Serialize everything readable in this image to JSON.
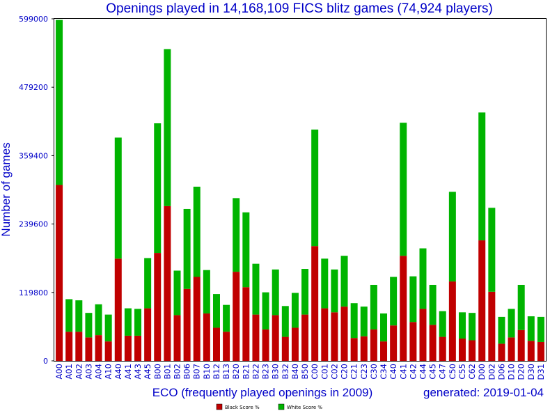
{
  "chart_data": {
    "type": "bar",
    "stacked": true,
    "title": "Openings played in 14,168,109 FICS blitz games (74,924 players)",
    "xlabel": "ECO (frequently played openings in 2009)",
    "ylabel": "Number of games",
    "generated": "generated: 2019-01-04",
    "ylim": [
      0,
      599000
    ],
    "yticks": [
      0,
      119800,
      239600,
      359400,
      479200,
      599000
    ],
    "ytick_labels": [
      "0",
      "119800",
      "239600",
      "359400",
      "479200",
      "599000"
    ],
    "grid": false,
    "legend_position": "bottom-center",
    "categories": [
      "A00",
      "A01",
      "A02",
      "A03",
      "A04",
      "A10",
      "A40",
      "A41",
      "A43",
      "A45",
      "B00",
      "B01",
      "B02",
      "B06",
      "B07",
      "B10",
      "B12",
      "B13",
      "B20",
      "B21",
      "B22",
      "B23",
      "B30",
      "B32",
      "B40",
      "B50",
      "C00",
      "C01",
      "C02",
      "C20",
      "C21",
      "C23",
      "C30",
      "C34",
      "C40",
      "C41",
      "C42",
      "C44",
      "C45",
      "C47",
      "C50",
      "C55",
      "C62",
      "D00",
      "D02",
      "D06",
      "D10",
      "D20",
      "D30",
      "D31"
    ],
    "series": [
      {
        "name": "Black Score %",
        "color": "#c00000",
        "values": [
          308000,
          51000,
          51000,
          41000,
          45000,
          34000,
          179000,
          44000,
          44000,
          92000,
          189000,
          271000,
          80000,
          126000,
          147000,
          83000,
          58000,
          51000,
          156000,
          129000,
          81000,
          55000,
          80000,
          42000,
          58000,
          81000,
          201000,
          92000,
          85000,
          95000,
          40000,
          43000,
          55000,
          34000,
          62000,
          184000,
          68000,
          91000,
          63000,
          42000,
          139000,
          39000,
          36000,
          211000,
          121000,
          30000,
          41000,
          54000,
          35000,
          33000
        ]
      },
      {
        "name": "White Score %",
        "color": "#00b400",
        "values": [
          289000,
          57000,
          55000,
          43000,
          54000,
          47000,
          212000,
          48000,
          47000,
          88000,
          227000,
          275000,
          78000,
          140000,
          158000,
          76000,
          59000,
          47000,
          129000,
          131000,
          89000,
          65000,
          80000,
          54000,
          61000,
          80000,
          204000,
          87000,
          75000,
          89000,
          61000,
          52000,
          78000,
          49000,
          85000,
          233000,
          80000,
          106000,
          70000,
          45000,
          157000,
          46000,
          48000,
          224000,
          147000,
          47000,
          50000,
          79000,
          43000,
          44000
        ]
      }
    ]
  }
}
